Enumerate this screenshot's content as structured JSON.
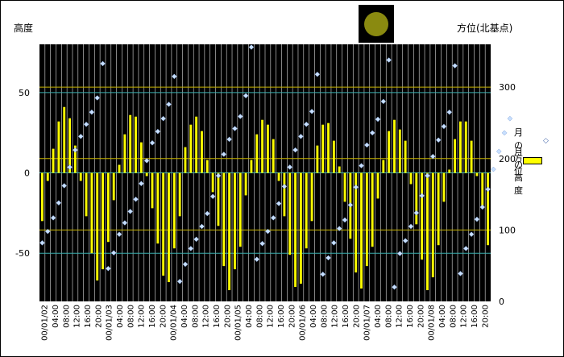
{
  "chart_data": {
    "type": "bar+scatter",
    "y_left_label": "高度",
    "y_right_label": "方位(北基点)",
    "y_left_ticks": [
      "50",
      "0",
      "-50"
    ],
    "y_left_range": [
      -80,
      80
    ],
    "y_right_ticks": [
      "300",
      "200",
      "100",
      "0"
    ],
    "y_right_range": [
      0,
      360
    ],
    "x_tick_labels": [
      "00/01/02",
      "04:00",
      "08:00",
      "12:00",
      "16:00",
      "20:00",
      "00/01/03",
      "04:00",
      "08:00",
      "12:00",
      "16:00",
      "20:00",
      "00/01/04",
      "04:00",
      "08:00",
      "12:00",
      "16:00",
      "20:00",
      "00/01/05",
      "04:00",
      "08:00",
      "12:00",
      "16:00",
      "20:00",
      "00/01/06",
      "04:00",
      "08:00",
      "12:00",
      "16:00",
      "20:00",
      "00/01/07",
      "04:00",
      "08:00",
      "12:00",
      "16:00",
      "20:00",
      "00/01/08",
      "04:00",
      "08:00",
      "12:00",
      "16:00",
      "20:00"
    ],
    "legend": {
      "azimuth": "月の方位",
      "altitude": "月の高度"
    },
    "colors": {
      "plot_bg": "#000000",
      "bar": "#ffff00",
      "marker": "#c8e0ff",
      "grid": "#dcdcdc",
      "olive_line": "#c8b400",
      "teal_line": "#3ab0b0"
    },
    "series": [
      {
        "name": "月の高度",
        "values": [
          -30,
          -5,
          15,
          32,
          41,
          34,
          17,
          -5,
          -27,
          -50,
          -67,
          -60,
          -43,
          -17,
          5,
          24,
          36,
          35,
          19,
          -2,
          -22,
          -44,
          -64,
          -68,
          -47,
          -27,
          16,
          30,
          35,
          26,
          8,
          -12,
          -33,
          -58,
          -73,
          -60,
          -46,
          -14,
          8,
          24,
          33,
          30,
          21,
          -5,
          -27,
          -51,
          -71,
          -69,
          -47,
          -30,
          17,
          30,
          31,
          20,
          4,
          -18,
          -41,
          -62,
          -72,
          -58,
          -46,
          -16,
          8,
          26,
          33,
          27,
          20,
          -7,
          -32,
          -54,
          -73,
          -65,
          -45,
          -18,
          2,
          21,
          32,
          32,
          20,
          -2,
          -22,
          -45
        ]
      },
      {
        "name": "月の方位",
        "values": [
          82,
          98,
          117,
          138,
          162,
          188,
          212,
          231,
          248,
          265,
          285,
          333,
          46,
          68,
          94,
          110,
          126,
          143,
          165,
          197,
          222,
          238,
          256,
          276,
          315,
          28,
          52,
          74,
          87,
          105,
          123,
          147,
          176,
          206,
          227,
          242,
          259,
          288,
          356,
          59,
          81,
          98,
          117,
          137,
          161,
          188,
          212,
          231,
          248,
          266,
          318,
          38,
          61,
          82,
          102,
          114,
          135,
          160,
          190,
          219,
          236,
          255,
          280,
          338,
          20,
          67,
          85,
          105,
          124,
          148,
          176,
          203,
          226,
          245,
          265,
          330,
          39,
          74,
          94,
          115,
          132,
          157,
          185,
          210,
          236,
          256
        ]
      }
    ]
  }
}
